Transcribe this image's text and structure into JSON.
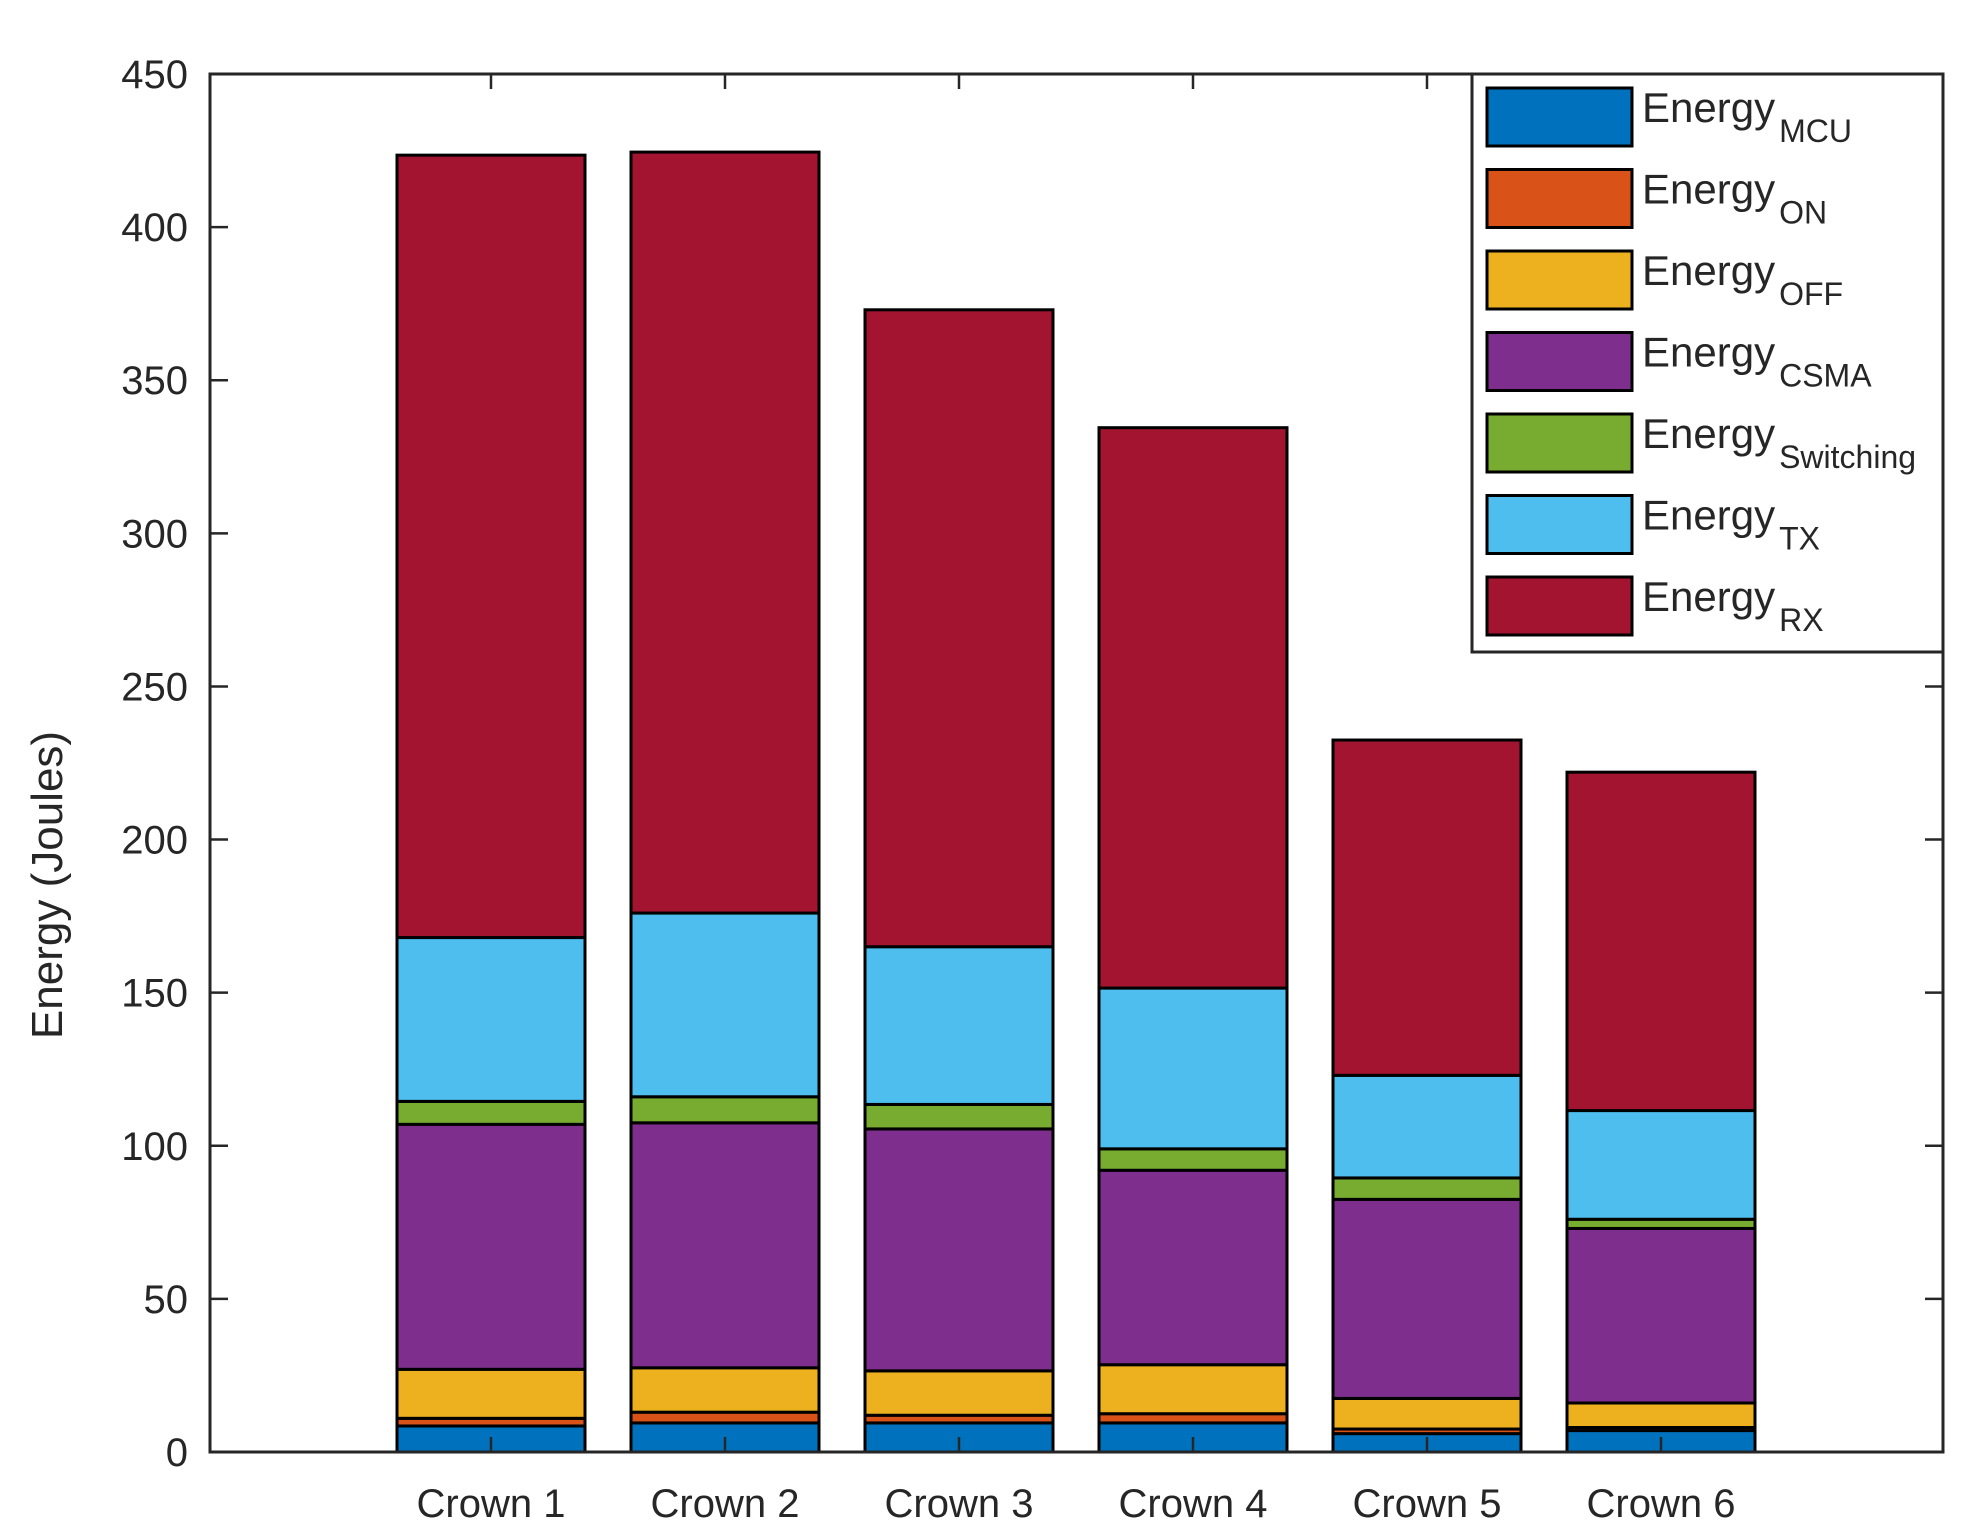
{
  "chart_data": {
    "type": "bar",
    "stacked": true,
    "title": "",
    "xlabel": "",
    "ylabel": "Energy (Joules)",
    "ylim": [
      0,
      450
    ],
    "yticks": [
      0,
      50,
      100,
      150,
      200,
      250,
      300,
      350,
      400,
      450
    ],
    "grid": false,
    "legend_position": "top-right",
    "categories": [
      "Crown 1",
      "Crown 2",
      "Crown 3",
      "Crown 4",
      "Crown 5",
      "Crown 6"
    ],
    "series": [
      {
        "name": "Energy",
        "sub": "MCU",
        "color": "#0072BD",
        "values": [
          8.5,
          9.5,
          9.5,
          9.5,
          6,
          7
        ]
      },
      {
        "name": "Energy",
        "sub": "ON",
        "color": "#D95319",
        "values": [
          2.5,
          3.5,
          2.5,
          3,
          1.5,
          1
        ]
      },
      {
        "name": "Energy",
        "sub": "OFF",
        "color": "#EDB120",
        "values": [
          16,
          14.5,
          14.5,
          16,
          10,
          8
        ]
      },
      {
        "name": "Energy",
        "sub": "CSMA",
        "color": "#7E2F8E",
        "values": [
          80,
          80,
          79,
          63.5,
          65,
          57
        ]
      },
      {
        "name": "Energy",
        "sub": "Switching",
        "color": "#77AC30",
        "values": [
          7.5,
          8.5,
          8,
          7,
          7,
          3
        ]
      },
      {
        "name": "Energy",
        "sub": "TX",
        "color": "#4DBEEE",
        "values": [
          53.5,
          60,
          51.5,
          52.5,
          33.5,
          35.5
        ]
      },
      {
        "name": "Energy",
        "sub": "RX",
        "color": "#A2142F",
        "values": [
          255.5,
          248.5,
          208,
          183,
          109.5,
          110.5
        ]
      }
    ]
  }
}
